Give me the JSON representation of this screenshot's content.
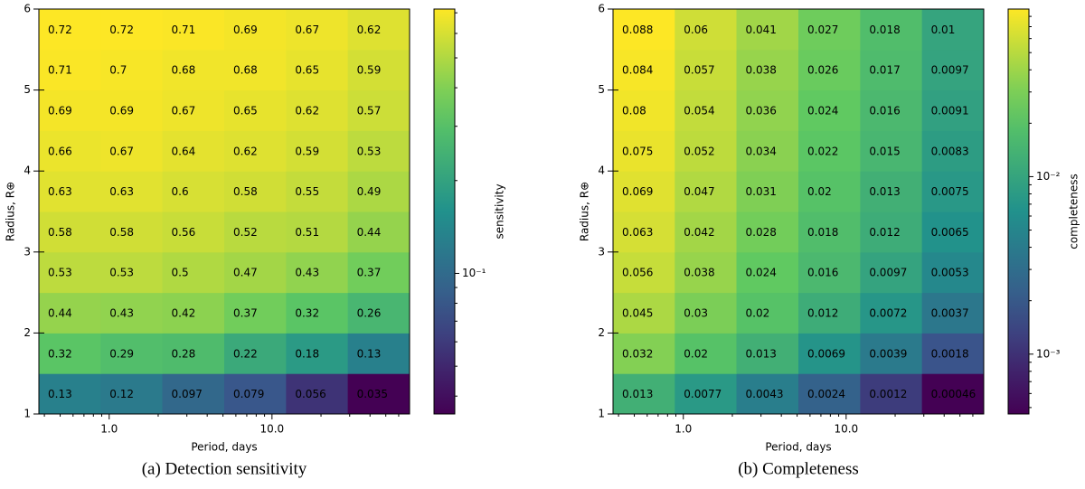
{
  "chart_data": [
    {
      "type": "heatmap",
      "caption": "(a) Detection sensitivity",
      "xlabel": "Period, days",
      "ylabel": "Radius, R⊕",
      "colorbar_label": "sensitivity",
      "xscale": "log",
      "xlim": [
        0.37,
        70
      ],
      "xbins": [
        0.37,
        0.886,
        2.12,
        5.09,
        12.2,
        29.2,
        70
      ],
      "xticks": [
        {
          "value": 1,
          "label": "1.0"
        },
        {
          "value": 10,
          "label": "10.0"
        }
      ],
      "ylim": [
        1,
        6
      ],
      "yticks": [
        1,
        2,
        3,
        4,
        5,
        6
      ],
      "ybins": [
        1,
        1.5,
        2,
        2.5,
        3,
        3.5,
        4,
        4.5,
        5,
        5.5,
        6
      ],
      "colormap": "viridis",
      "zscale": "log",
      "zlim": [
        0.035,
        0.72
      ],
      "zticks": [
        {
          "value": 0.1,
          "label": "10⁻¹"
        }
      ],
      "values": [
        [
          0.13,
          0.12,
          0.097,
          0.079,
          0.056,
          0.035
        ],
        [
          0.32,
          0.29,
          0.28,
          0.22,
          0.18,
          0.13
        ],
        [
          0.44,
          0.43,
          0.42,
          0.37,
          0.32,
          0.26
        ],
        [
          0.53,
          0.53,
          0.5,
          0.47,
          0.43,
          0.37
        ],
        [
          0.58,
          0.58,
          0.56,
          0.52,
          0.51,
          0.44
        ],
        [
          0.63,
          0.63,
          0.6,
          0.58,
          0.55,
          0.49
        ],
        [
          0.66,
          0.67,
          0.64,
          0.62,
          0.59,
          0.53
        ],
        [
          0.69,
          0.69,
          0.67,
          0.65,
          0.62,
          0.57
        ],
        [
          0.71,
          0.7,
          0.68,
          0.68,
          0.65,
          0.59
        ],
        [
          0.72,
          0.72,
          0.71,
          0.69,
          0.67,
          0.62
        ]
      ]
    },
    {
      "type": "heatmap",
      "caption": "(b) Completeness",
      "xlabel": "Period, days",
      "ylabel": "Radius, R⊕",
      "colorbar_label": "completeness",
      "xscale": "log",
      "xlim": [
        0.37,
        70
      ],
      "xbins": [
        0.37,
        0.886,
        2.12,
        5.09,
        12.2,
        29.2,
        70
      ],
      "xticks": [
        {
          "value": 1,
          "label": "1.0"
        },
        {
          "value": 10,
          "label": "10.0"
        }
      ],
      "ylim": [
        1,
        6
      ],
      "yticks": [
        1,
        2,
        3,
        4,
        5,
        6
      ],
      "ybins": [
        1,
        1.5,
        2,
        2.5,
        3,
        3.5,
        4,
        4.5,
        5,
        5.5,
        6
      ],
      "colormap": "viridis",
      "zscale": "log",
      "zlim": [
        0.00046,
        0.088
      ],
      "zticks": [
        {
          "value": 0.001,
          "label": "10⁻³"
        },
        {
          "value": 0.01,
          "label": "10⁻²"
        }
      ],
      "values": [
        [
          0.013,
          0.0077,
          0.0043,
          0.0024,
          0.0012,
          0.00046
        ],
        [
          0.032,
          0.02,
          0.013,
          0.0069,
          0.0039,
          0.0018
        ],
        [
          0.045,
          0.03,
          0.02,
          0.012,
          0.0072,
          0.0037
        ],
        [
          0.056,
          0.038,
          0.024,
          0.016,
          0.0097,
          0.0053
        ],
        [
          0.063,
          0.042,
          0.028,
          0.018,
          0.012,
          0.0065
        ],
        [
          0.069,
          0.047,
          0.031,
          0.02,
          0.013,
          0.0075
        ],
        [
          0.075,
          0.052,
          0.034,
          0.022,
          0.015,
          0.0083
        ],
        [
          0.08,
          0.054,
          0.036,
          0.024,
          0.016,
          0.0091
        ],
        [
          0.084,
          0.057,
          0.038,
          0.026,
          0.017,
          0.0097
        ],
        [
          0.088,
          0.06,
          0.041,
          0.027,
          0.018,
          0.01
        ]
      ]
    }
  ]
}
